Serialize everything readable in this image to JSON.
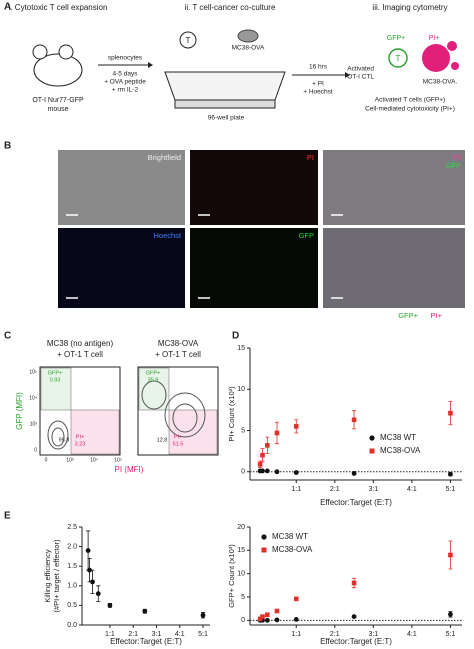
{
  "panel_a": {
    "label": "A",
    "steps": [
      "i. Cytotoxic T cell expansion",
      "ii. T cell-cancer co-culture",
      "iii. Imaging cytometry"
    ],
    "mouse": [
      "OT-I Nur77-GFP",
      "mouse"
    ],
    "arrow1": [
      "splenocytes",
      "4-5 days",
      "+ OVA peptide",
      "+ rm IL-2"
    ],
    "tcell": "T",
    "cancer": "MC38-OVA",
    "plate": "96-well plate",
    "arrow2": [
      "16 hrs",
      "+ PI",
      "+ Hoechst"
    ],
    "result": {
      "gfp": "GFP+",
      "pi": "PI+",
      "ctl": [
        "Activated",
        "OT-I CTL"
      ],
      "tcell": "T",
      "target": "MC38-OVA.",
      "readout": [
        "Activated T cells (GFP+)",
        "Cell-mediated cytotoxicity (PI+)"
      ]
    }
  },
  "panel_b": {
    "label": "B",
    "images": [
      [
        "Brightfield"
      ],
      [
        "PI"
      ],
      [
        "PI",
        "GFP"
      ],
      [
        "Hoechst"
      ],
      [
        "GFP"
      ]
    ],
    "legend": [
      "GFP+",
      "PI+"
    ]
  },
  "panel_c": {
    "label": "C",
    "y_axis": "GFP (MFI)",
    "x_axis": "PI (MFI)",
    "yticks": [
      "10⁵",
      "10⁴",
      "10³",
      "0"
    ],
    "xticks": [
      "0",
      "10³",
      "10⁴",
      "10⁵"
    ],
    "plots": [
      {
        "title": [
          "MC38 (no antigen)",
          "+ OT-1 T cell"
        ],
        "gfp_gate": "GFP+",
        "gfp_pct": 0.93,
        "neg_pct": 95.8,
        "pi_gate": "PI+",
        "pi_pct": 3.23
      },
      {
        "title": [
          "MC38-OVA",
          "+ OT-1 T cell"
        ],
        "gfp_gate": "GFP+",
        "gfp_pct": 35.9,
        "neg_pct": 12.8,
        "pi_gate": "PI+",
        "pi_pct": 51.5
      }
    ]
  },
  "panel_d": {
    "label": "D"
  },
  "panel_e": {
    "label": "E"
  },
  "chart_data": [
    {
      "type": "scatter",
      "ylabel": "PI+ Count (x10³)",
      "xlabel": "Effector:Target (E:T)",
      "xlim": [
        -0.2,
        5.3
      ],
      "ylim": [
        -1,
        15
      ],
      "xticks": [
        {
          "value": 1,
          "label": "1:1"
        },
        {
          "value": 2,
          "label": "2:1"
        },
        {
          "value": 3,
          "label": "3:1"
        },
        {
          "value": 4,
          "label": "4:1"
        },
        {
          "value": 5,
          "label": "5:1"
        }
      ],
      "yticks": [
        0,
        5,
        10,
        15
      ],
      "zero_line": true,
      "legend": "lower right",
      "x": [
        0.0625,
        0.125,
        0.25,
        0.5,
        1,
        2.5,
        5
      ],
      "series": [
        {
          "name": "MC38 WT",
          "color": "#111111",
          "marker": "circle",
          "values": [
            0.1,
            0.1,
            0.1,
            0,
            -0.1,
            -0.2,
            -0.3
          ],
          "errors": [
            0.1,
            0.1,
            0.1,
            0.1,
            0.1,
            0.1,
            0.2
          ]
        },
        {
          "name": "MC38-OVA",
          "color": "#e0302a",
          "marker": "square",
          "values": [
            0.9,
            2,
            3.2,
            4.7,
            5.5,
            6.3,
            7.1
          ],
          "errors": [
            0.4,
            0.8,
            1,
            1.3,
            0.8,
            1.1,
            1.4
          ]
        }
      ]
    },
    {
      "type": "scatter",
      "ylabel": "GFP+ Count (x10³)",
      "xlabel": "Effector:Target (E:T)",
      "xlim": [
        -0.2,
        5.3
      ],
      "ylim": [
        -1,
        20
      ],
      "xticks": [
        {
          "value": 1,
          "label": "1:1"
        },
        {
          "value": 2,
          "label": "2:1"
        },
        {
          "value": 3,
          "label": "3:1"
        },
        {
          "value": 4,
          "label": "4:1"
        },
        {
          "value": 5,
          "label": "5:1"
        }
      ],
      "yticks": [
        0,
        5,
        10,
        15,
        20
      ],
      "zero_line": true,
      "legend": "upper left",
      "x": [
        0.0625,
        0.125,
        0.25,
        0.5,
        1,
        2.5,
        5
      ],
      "series": [
        {
          "name": "MC38 WT",
          "color": "#111111",
          "marker": "circle",
          "values": [
            0,
            0,
            0,
            0.1,
            0.2,
            0.8,
            1.3
          ],
          "errors": [
            0.1,
            0.1,
            0.1,
            0.1,
            0.1,
            0.2,
            0.6
          ]
        },
        {
          "name": "MC38-OVA",
          "color": "#e0302a",
          "marker": "square",
          "values": [
            0.3,
            0.8,
            1.2,
            2,
            4.6,
            8,
            14
          ],
          "errors": [
            0.1,
            0.2,
            0.3,
            0.3,
            0.3,
            1,
            3
          ]
        }
      ]
    },
    {
      "type": "scatter",
      "ylabel": [
        "Killing efficiency",
        "(#PI+ target / effector)"
      ],
      "xlabel": "Effector:Target (E:T)",
      "xlim": [
        -0.2,
        5.3
      ],
      "ylim": [
        0,
        2.5
      ],
      "xticks": [
        {
          "value": 1,
          "label": "1:1"
        },
        {
          "value": 2,
          "label": "2:1"
        },
        {
          "value": 3,
          "label": "3:1"
        },
        {
          "value": 4,
          "label": "4:1"
        },
        {
          "value": 5,
          "label": "5:1"
        }
      ],
      "yticks": [
        {
          "value": 0,
          "label": "0.0"
        },
        0.5,
        {
          "value": 1,
          "label": "1.0"
        },
        1.5,
        {
          "value": 2,
          "label": "2.0"
        },
        2.5
      ],
      "zero_line": false,
      "x": [
        0.0625,
        0.125,
        0.25,
        0.5,
        1,
        2.5,
        5
      ],
      "series": [
        {
          "color": "#111111",
          "marker": "circle",
          "values": [
            1.9,
            1.4,
            1.1,
            0.8,
            0.5,
            0.35,
            0.25
          ],
          "errors": [
            0.5,
            0.3,
            0.3,
            0.2,
            0.05,
            0.05,
            0.07
          ]
        }
      ]
    }
  ]
}
